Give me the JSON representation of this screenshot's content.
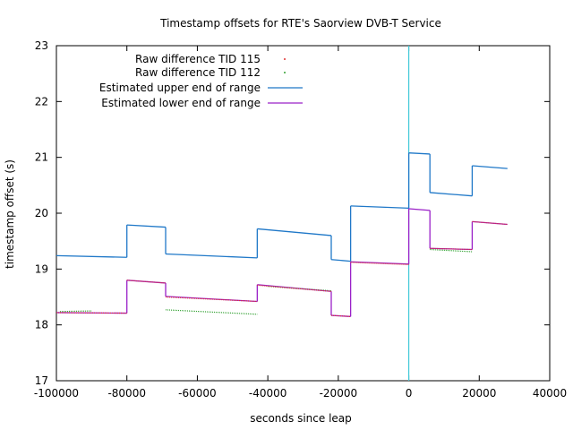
{
  "chart_data": {
    "type": "line",
    "title": "Timestamp offsets for RTE's Saorview DVB-T Service",
    "xlabel": "seconds since leap",
    "ylabel": "timestamp offset (s)",
    "xlim": [
      -100000,
      40000
    ],
    "ylim": [
      17,
      23
    ],
    "xticks": [
      -100000,
      -80000,
      -60000,
      -40000,
      -20000,
      0,
      20000,
      40000
    ],
    "yticks": [
      17,
      18,
      19,
      20,
      21,
      22,
      23
    ],
    "xtick_labels": [
      "-100000",
      "-80000",
      "-60000",
      "-40000",
      "-20000",
      "0",
      "20000",
      "40000"
    ],
    "ytick_labels": [
      "17",
      "18",
      "19",
      "20",
      "21",
      "22",
      "23"
    ],
    "grid": false,
    "legend_position": "top-left",
    "vertical_marker": {
      "x": 0,
      "color": "#40c8d8"
    },
    "series": [
      {
        "name": "Raw difference TID 115",
        "style": "points",
        "color": "#e03030",
        "segments": [
          [
            [
              -100000,
              18.22
            ],
            [
              -80000,
              18.21
            ]
          ],
          [
            [
              -80000,
              18.8
            ],
            [
              -69000,
              18.75
            ]
          ],
          [
            [
              -69000,
              18.5
            ],
            [
              -43000,
              18.42
            ]
          ],
          [
            [
              -43000,
              18.71
            ],
            [
              -22000,
              18.6
            ]
          ],
          [
            [
              -22000,
              18.17
            ],
            [
              -16500,
              18.15
            ]
          ],
          [
            [
              -16500,
              19.12
            ],
            [
              0,
              19.08
            ]
          ],
          [
            [
              6000,
              19.37
            ],
            [
              18000,
              19.35
            ]
          ],
          [
            [
              18000,
              19.85
            ],
            [
              28000,
              19.8
            ]
          ]
        ]
      },
      {
        "name": "Raw difference TID 112",
        "style": "points",
        "color": "#30a030",
        "segments": [
          [
            [
              -99000,
              18.24
            ],
            [
              -90000,
              18.25
            ]
          ],
          [
            [
              -69000,
              18.27
            ],
            [
              -43000,
              18.19
            ]
          ],
          [
            [
              -40000,
              18.69
            ],
            [
              -22000,
              18.61
            ]
          ],
          [
            [
              6000,
              19.35
            ],
            [
              18000,
              19.31
            ]
          ]
        ]
      },
      {
        "name": "Estimated upper end of range",
        "style": "line",
        "color": "#1f78c8",
        "segments": [
          [
            [
              -100000,
              19.24
            ],
            [
              -80000,
              19.21
            ]
          ],
          [
            [
              -80000,
              19.79
            ],
            [
              -69000,
              19.75
            ]
          ],
          [
            [
              -69000,
              19.27
            ],
            [
              -43000,
              19.2
            ]
          ],
          [
            [
              -43000,
              19.72
            ],
            [
              -22000,
              19.6
            ]
          ],
          [
            [
              -22000,
              19.17
            ],
            [
              -16500,
              19.14
            ]
          ],
          [
            [
              -16500,
              20.13
            ],
            [
              0,
              20.09
            ]
          ],
          [
            [
              0,
              21.08
            ],
            [
              6000,
              21.06
            ]
          ],
          [
            [
              6000,
              20.37
            ],
            [
              18000,
              20.31
            ]
          ],
          [
            [
              18000,
              20.85
            ],
            [
              28000,
              20.8
            ]
          ]
        ]
      },
      {
        "name": "Estimated lower end of range",
        "style": "line",
        "color": "#9a20c8",
        "segments": [
          [
            [
              -100000,
              18.22
            ],
            [
              -80000,
              18.21
            ]
          ],
          [
            [
              -80000,
              18.8
            ],
            [
              -69000,
              18.75
            ]
          ],
          [
            [
              -69000,
              18.51
            ],
            [
              -43000,
              18.42
            ]
          ],
          [
            [
              -43000,
              18.72
            ],
            [
              -22000,
              18.6
            ]
          ],
          [
            [
              -22000,
              18.17
            ],
            [
              -16500,
              18.15
            ]
          ],
          [
            [
              -16500,
              19.13
            ],
            [
              0,
              19.09
            ]
          ],
          [
            [
              0,
              20.08
            ],
            [
              6000,
              20.05
            ]
          ],
          [
            [
              6000,
              19.37
            ],
            [
              18000,
              19.35
            ]
          ],
          [
            [
              18000,
              19.85
            ],
            [
              28000,
              19.8
            ]
          ]
        ]
      }
    ]
  }
}
